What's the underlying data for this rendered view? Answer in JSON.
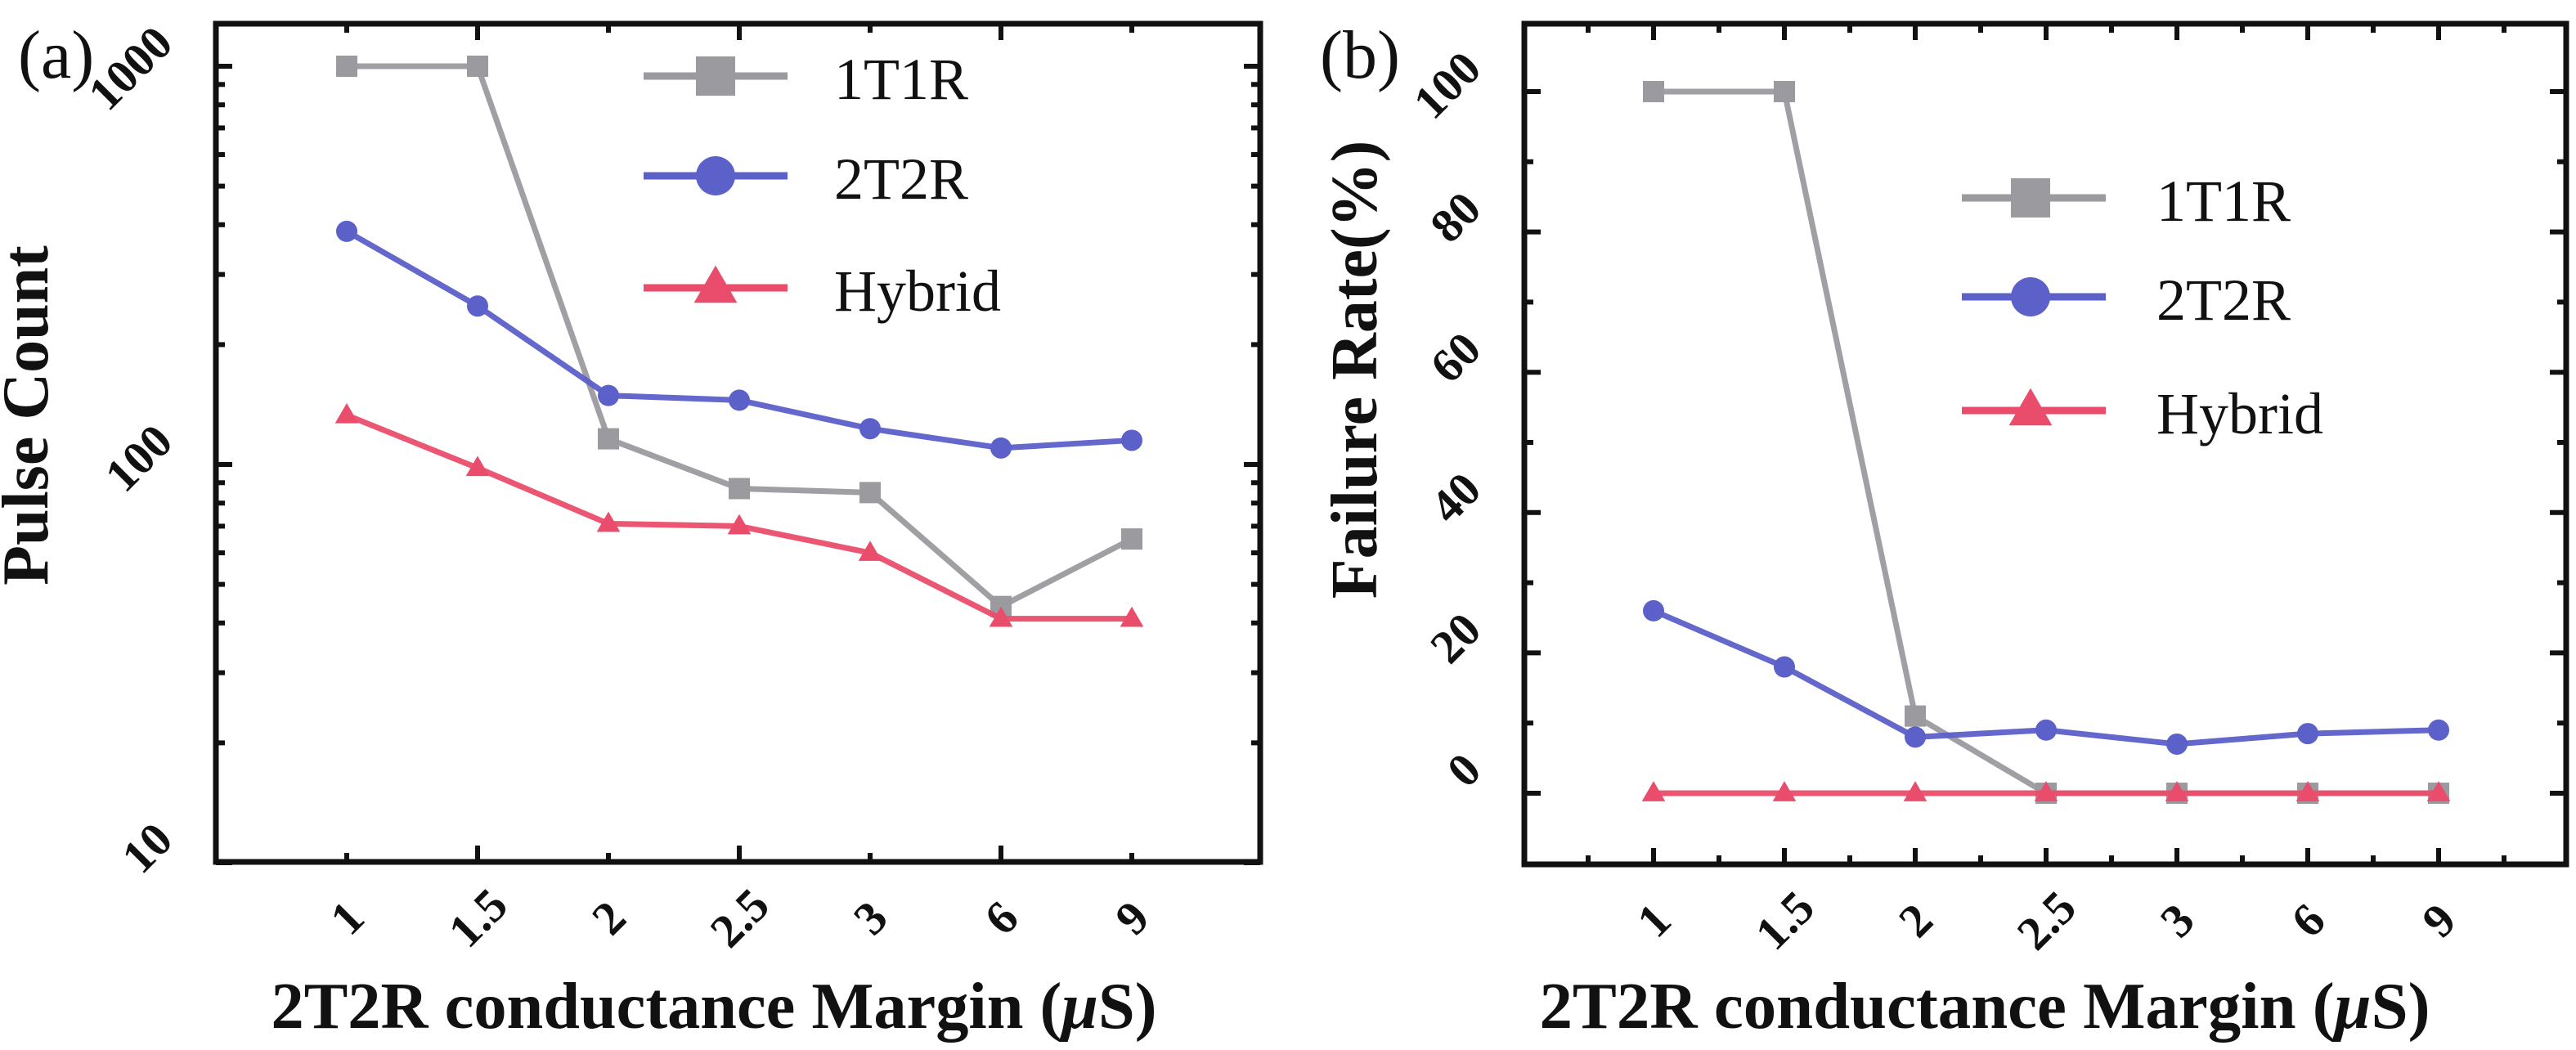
{
  "figure": {
    "panels": [
      "(a)",
      "(b)"
    ]
  },
  "chart_data": [
    {
      "panel_label": "(a)",
      "type": "line",
      "title": "",
      "xlabel": "2T2R conductance Margin (μS)",
      "xlabel_parts": [
        "2T2R conductance Margin (",
        "μ",
        "S)"
      ],
      "ylabel": "Pulse Count",
      "yscale": "log",
      "ylim": [
        10,
        1280
      ],
      "yticks": [
        10,
        100,
        1000
      ],
      "ytick_labels": [
        "10",
        "100",
        "1000"
      ],
      "categories": [
        "1",
        "1.5",
        "2",
        "2.5",
        "3",
        "6",
        "9"
      ],
      "grid": false,
      "legend_position": "top-right",
      "series": [
        {
          "name": "1T1R",
          "marker": "square",
          "color": "#9a9a9f",
          "values": [
            1000,
            1000,
            116,
            87,
            85,
            44,
            65
          ]
        },
        {
          "name": "2T2R",
          "marker": "circle",
          "color": "#5c60c9",
          "values": [
            385,
            250,
            149,
            145,
            123,
            110,
            115
          ]
        },
        {
          "name": "Hybrid",
          "marker": "triangle",
          "color": "#ea4d6b",
          "values": [
            133,
            98,
            71,
            70,
            60,
            41,
            41
          ]
        }
      ]
    },
    {
      "panel_label": "(b)",
      "type": "line",
      "title": "",
      "xlabel": "2T2R conductance Margin (μS)",
      "xlabel_parts": [
        "2T2R conductance Margin (",
        "μ",
        "S)"
      ],
      "ylabel": "Failure Rate(%)",
      "yscale": "linear",
      "ylim": [
        -10,
        110
      ],
      "yticks": [
        0,
        20,
        40,
        60,
        80,
        100
      ],
      "ytick_labels": [
        "0",
        "20",
        "40",
        "60",
        "80",
        "100"
      ],
      "categories": [
        "1",
        "1.5",
        "2",
        "2.5",
        "3",
        "6",
        "9"
      ],
      "grid": false,
      "legend_position": "upper-right",
      "series": [
        {
          "name": "1T1R",
          "marker": "square",
          "color": "#9a9a9f",
          "values": [
            100,
            100,
            11,
            0,
            0,
            0,
            0
          ]
        },
        {
          "name": "2T2R",
          "marker": "circle",
          "color": "#5c60c9",
          "values": [
            26,
            18,
            8,
            9,
            7,
            8.5,
            9
          ]
        },
        {
          "name": "Hybrid",
          "marker": "triangle",
          "color": "#ea4d6b",
          "values": [
            0,
            0,
            0,
            0,
            0,
            0,
            0
          ]
        }
      ]
    }
  ]
}
